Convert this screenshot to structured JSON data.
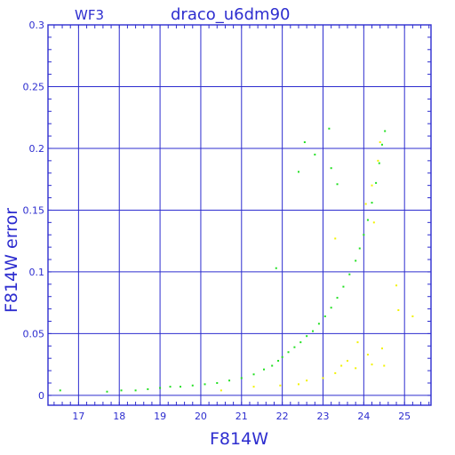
{
  "chart_data": {
    "type": "scatter",
    "title": "draco_u6dm90",
    "chip_label": "WF3",
    "xlabel": "F814W",
    "ylabel": "F814W error",
    "xlim": [
      16.25,
      25.65
    ],
    "ylim": [
      -0.008,
      0.3
    ],
    "x_ticks": [
      17,
      18,
      19,
      20,
      21,
      22,
      23,
      24,
      25
    ],
    "y_ticks": [
      0,
      0.05,
      0.1,
      0.15,
      0.2,
      0.25,
      0.3
    ],
    "y_tick_labels": [
      "0",
      "0.05",
      "0.1",
      "0.15",
      "0.2",
      "0.25",
      "0.3"
    ],
    "grid": true,
    "colors": {
      "axes": "#2d2dcf",
      "grid": "#2d2dcf",
      "series_main": "#22e022",
      "series_flagged": "#f2f200"
    },
    "series": [
      {
        "role": "main",
        "color": "#22e022",
        "points": [
          [
            16.55,
            0.004
          ],
          [
            17.7,
            0.003
          ],
          [
            18.05,
            0.004
          ],
          [
            18.4,
            0.004
          ],
          [
            18.7,
            0.005
          ],
          [
            19.0,
            0.006
          ],
          [
            19.25,
            0.007
          ],
          [
            19.5,
            0.007
          ],
          [
            19.8,
            0.008
          ],
          [
            20.1,
            0.009
          ],
          [
            20.4,
            0.01
          ],
          [
            20.7,
            0.012
          ],
          [
            21.0,
            0.014
          ],
          [
            21.3,
            0.017
          ],
          [
            21.55,
            0.021
          ],
          [
            21.75,
            0.024
          ],
          [
            21.9,
            0.028
          ],
          [
            22.0,
            0.031
          ],
          [
            22.15,
            0.035
          ],
          [
            22.3,
            0.039
          ],
          [
            22.45,
            0.043
          ],
          [
            22.6,
            0.048
          ],
          [
            22.75,
            0.052
          ],
          [
            22.9,
            0.058
          ],
          [
            23.05,
            0.064
          ],
          [
            23.2,
            0.071
          ],
          [
            23.35,
            0.079
          ],
          [
            23.5,
            0.088
          ],
          [
            23.65,
            0.098
          ],
          [
            23.8,
            0.109
          ],
          [
            23.9,
            0.119
          ],
          [
            24.0,
            0.13
          ],
          [
            24.1,
            0.142
          ],
          [
            24.2,
            0.156
          ],
          [
            24.3,
            0.172
          ],
          [
            24.38,
            0.188
          ],
          [
            24.45,
            0.203
          ],
          [
            24.52,
            0.214
          ],
          [
            22.4,
            0.181
          ],
          [
            22.55,
            0.205
          ],
          [
            22.8,
            0.195
          ],
          [
            23.15,
            0.216
          ],
          [
            23.2,
            0.184
          ],
          [
            21.85,
            0.103
          ],
          [
            23.35,
            0.171
          ]
        ]
      },
      {
        "role": "flagged",
        "color": "#f2f200",
        "points": [
          [
            20.5,
            0.004
          ],
          [
            21.3,
            0.007
          ],
          [
            21.95,
            0.008
          ],
          [
            22.4,
            0.009
          ],
          [
            22.6,
            0.012
          ],
          [
            23.0,
            0.014
          ],
          [
            23.3,
            0.018
          ],
          [
            23.45,
            0.024
          ],
          [
            23.6,
            0.028
          ],
          [
            23.8,
            0.022
          ],
          [
            23.85,
            0.043
          ],
          [
            24.1,
            0.033
          ],
          [
            24.2,
            0.025
          ],
          [
            24.45,
            0.038
          ],
          [
            24.5,
            0.024
          ],
          [
            24.8,
            0.089
          ],
          [
            24.85,
            0.069
          ],
          [
            25.2,
            0.064
          ],
          [
            23.3,
            0.127
          ],
          [
            24.05,
            0.155
          ],
          [
            24.2,
            0.17
          ],
          [
            24.35,
            0.19
          ],
          [
            24.25,
            0.14
          ],
          [
            24.4,
            0.205
          ]
        ]
      }
    ]
  }
}
